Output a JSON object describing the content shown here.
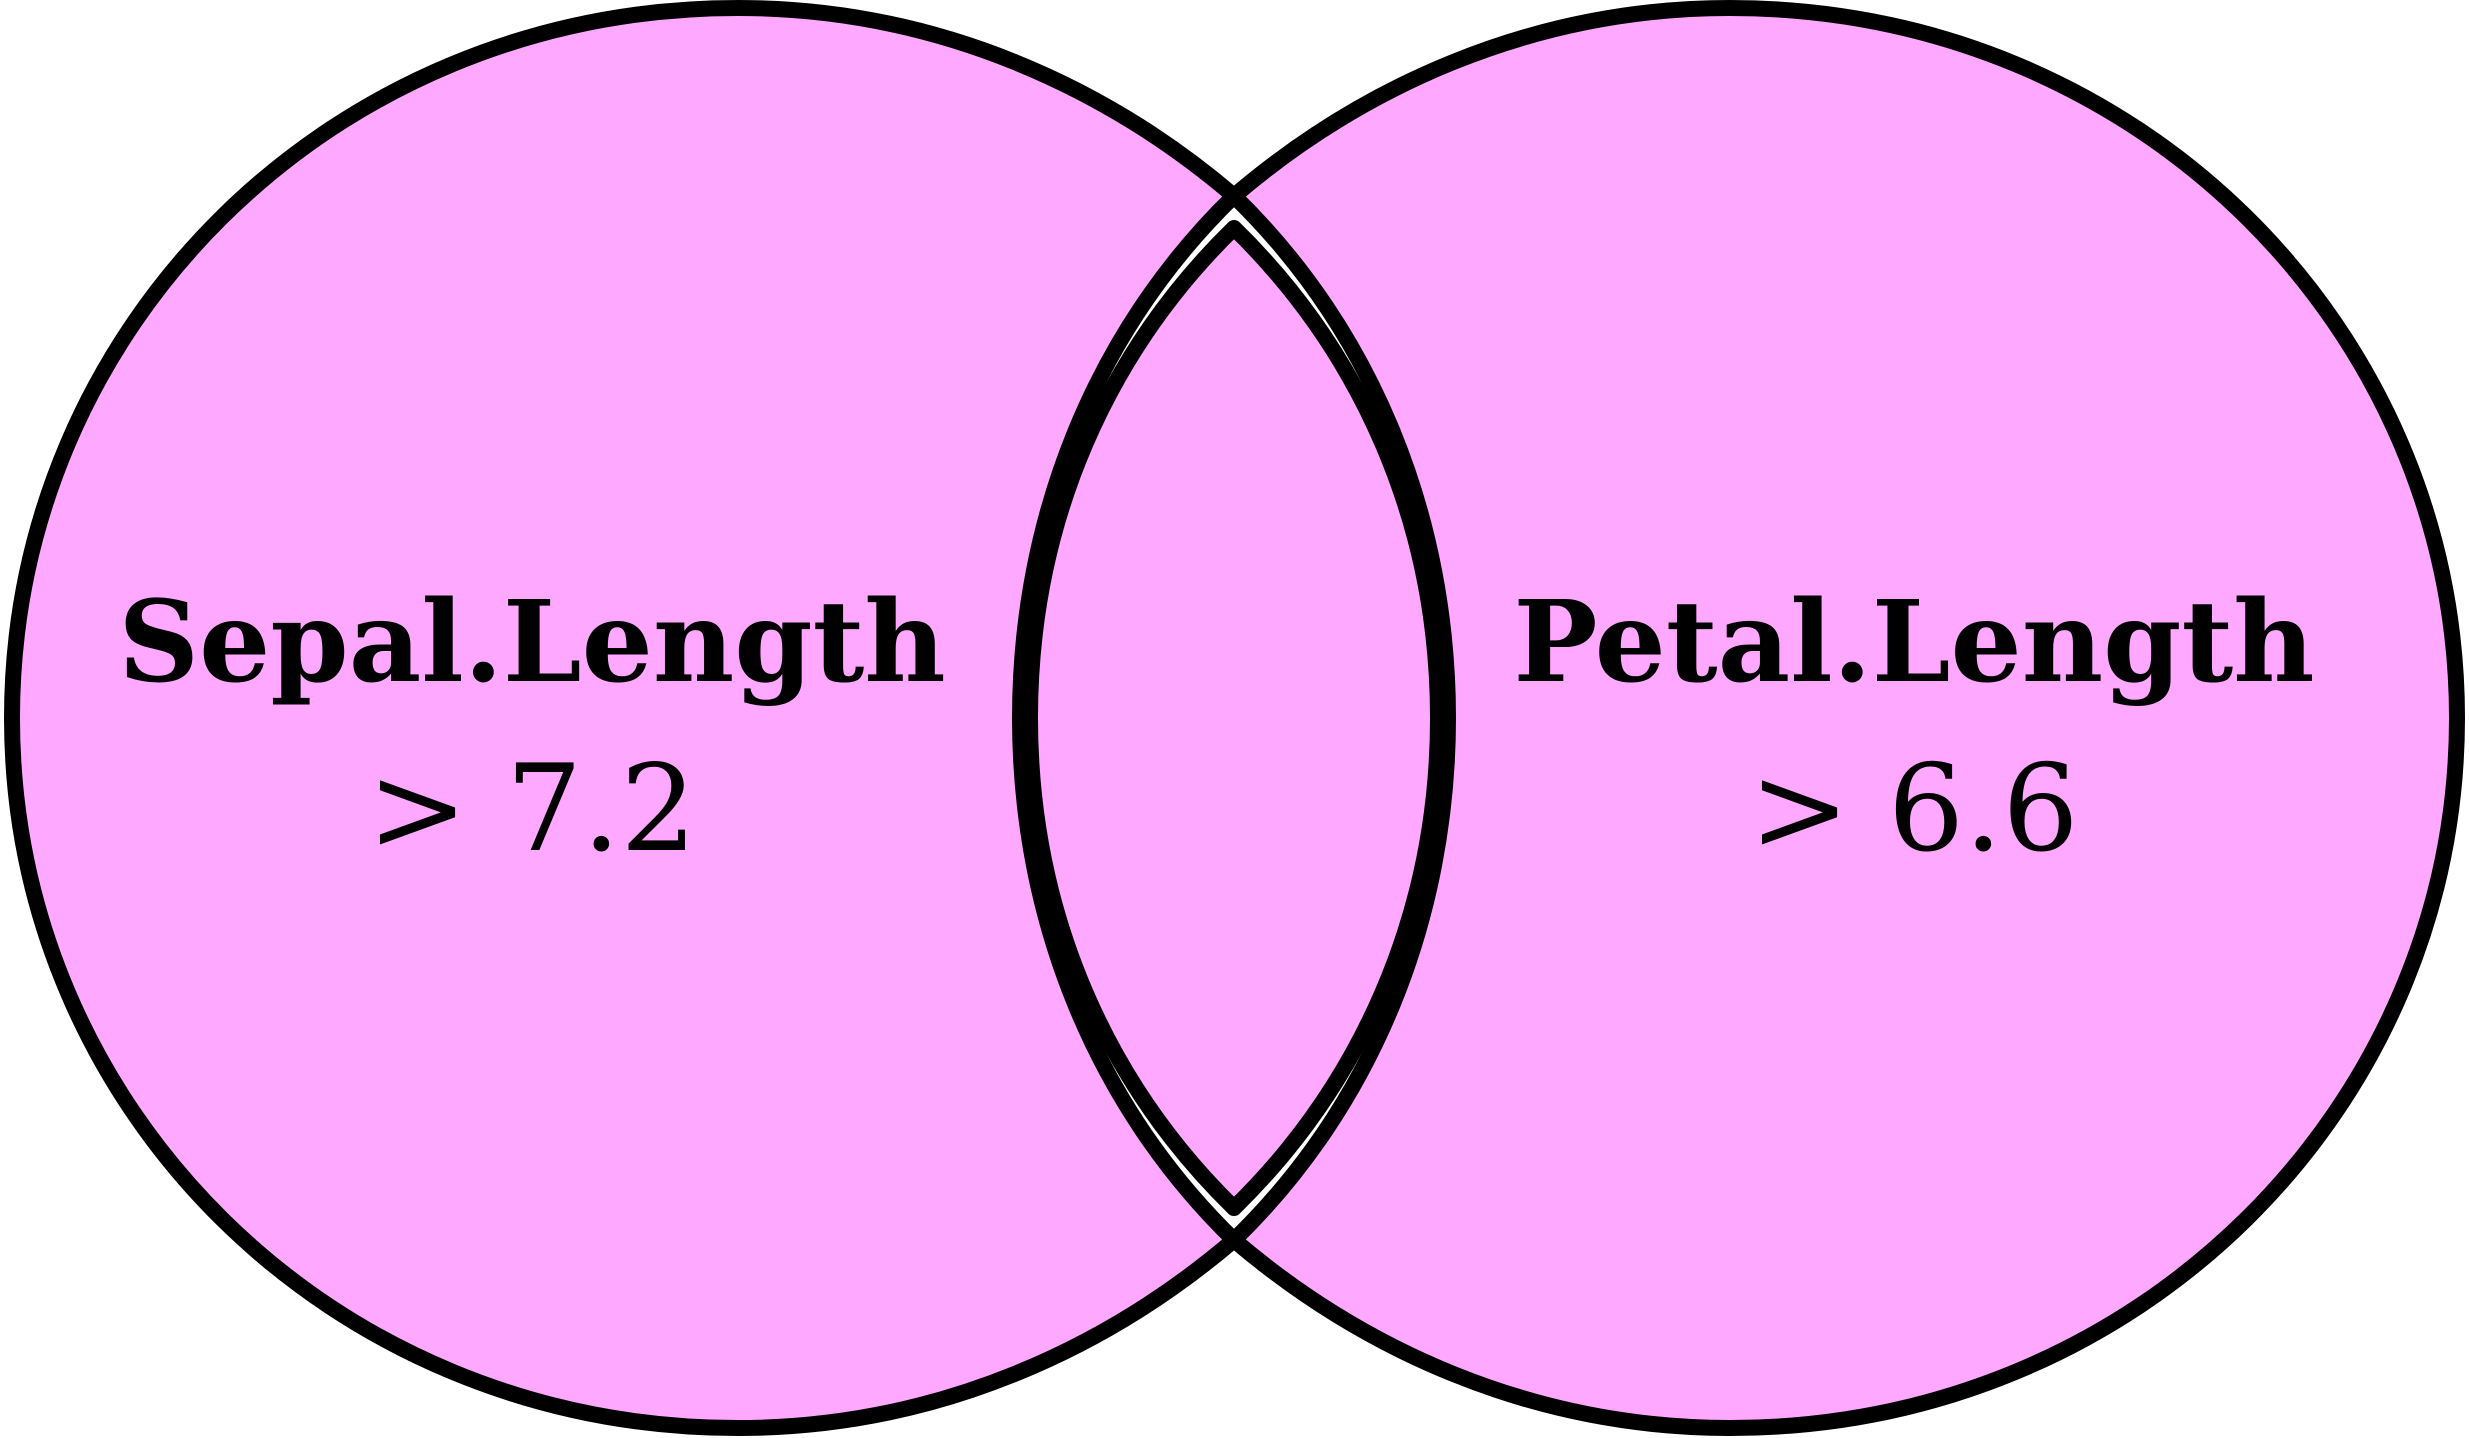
{
  "diagram": {
    "type": "venn",
    "fill_color": "#ffa8ff",
    "stroke_color": "#000000",
    "sets": [
      {
        "name": "Sepal.Length",
        "condition": "> 7.2"
      },
      {
        "name": "Petal.Length",
        "condition": "> 6.6"
      }
    ]
  }
}
